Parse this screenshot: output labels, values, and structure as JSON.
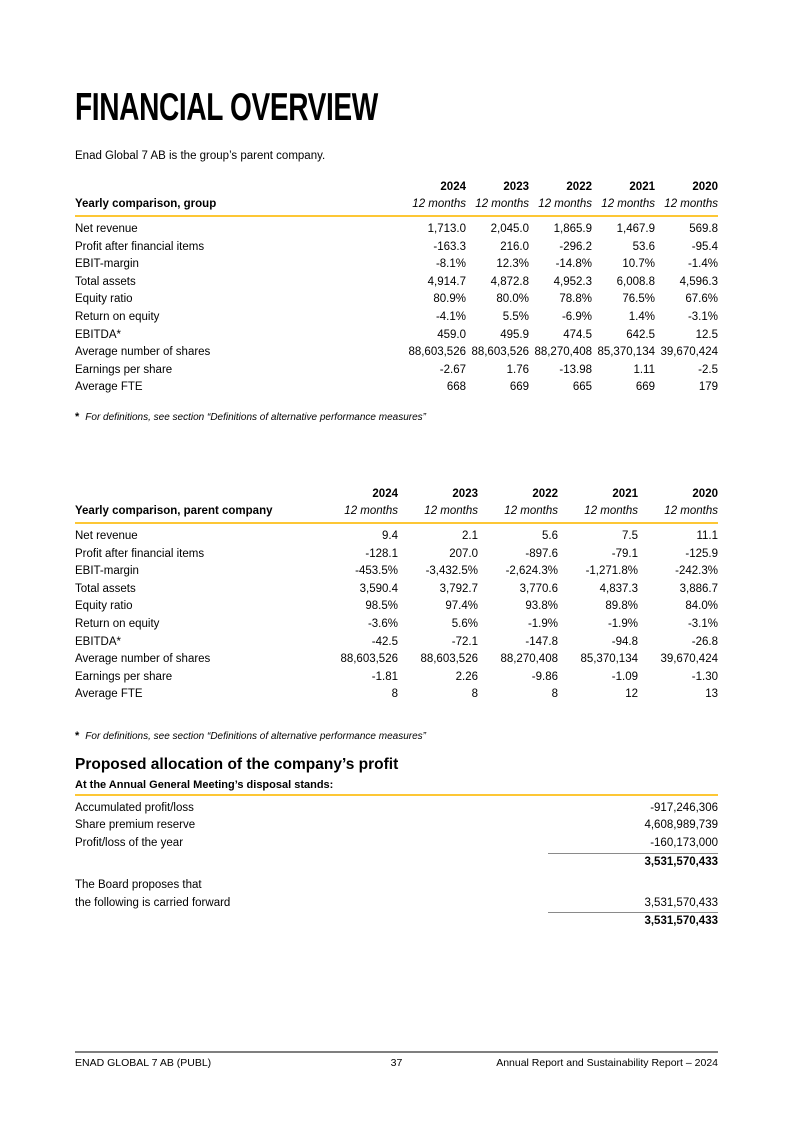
{
  "page": {
    "title": "FINANCIAL OVERVIEW",
    "subtitle": "Enad Global 7 AB is the group’s parent company."
  },
  "colors": {
    "accent_yellow": "#FDC735",
    "rule_gray": "#8a8a8a"
  },
  "years": [
    "2024",
    "2023",
    "2022",
    "2021",
    "2020"
  ],
  "period_label": "12 months",
  "footnote_text": "For definitions, see section “Definitions of alternative performance measures”",
  "tables": [
    {
      "name": "Yearly comparison, group",
      "rows": [
        {
          "label": "Net revenue",
          "values": [
            "1,713.0",
            "2,045.0",
            "1,865.9",
            "1,467.9",
            "569.8"
          ]
        },
        {
          "label": "Profit after financial items",
          "values": [
            "-163.3",
            "216.0",
            "-296.2",
            "53.6",
            "-95.4"
          ]
        },
        {
          "label": "EBIT-margin",
          "values": [
            "-8.1%",
            "12.3%",
            "-14.8%",
            "10.7%",
            "-1.4%"
          ]
        },
        {
          "label": "Total assets",
          "values": [
            "4,914.7",
            "4,872.8",
            "4,952.3",
            "6,008.8",
            "4,596.3"
          ]
        },
        {
          "label": "Equity ratio",
          "values": [
            "80.9%",
            "80.0%",
            "78.8%",
            "76.5%",
            "67.6%"
          ]
        },
        {
          "label": "Return on equity",
          "values": [
            "-4.1%",
            "5.5%",
            "-6.9%",
            "1.4%",
            "-3.1%"
          ]
        },
        {
          "label": "EBITDA*",
          "values": [
            "459.0",
            "495.9",
            "474.5",
            "642.5",
            "12.5"
          ]
        },
        {
          "label": "Average number of shares",
          "values": [
            "88,603,526",
            "88,603,526",
            "88,270,408",
            "85,370,134",
            "39,670,424"
          ]
        },
        {
          "label": "Earnings per share",
          "values": [
            "-2.67",
            "1.76",
            "-13.98",
            "1.11",
            "-2.5"
          ]
        },
        {
          "label": "Average FTE",
          "values": [
            "668",
            "669",
            "665",
            "669",
            "179"
          ]
        }
      ]
    },
    {
      "name": "Yearly comparison, parent company",
      "rows": [
        {
          "label": "Net revenue",
          "values": [
            "9.4",
            "2.1",
            "5.6",
            "7.5",
            "11.1"
          ]
        },
        {
          "label": "Profit after financial items",
          "values": [
            "-128.1",
            "207.0",
            "-897.6",
            "-79.1",
            "-125.9"
          ]
        },
        {
          "label": "EBIT-margin",
          "values": [
            "-453.5%",
            "-3,432.5%",
            "-2,624.3%",
            "-1,271.8%",
            "-242.3%"
          ]
        },
        {
          "label": "Total assets",
          "values": [
            "3,590.4",
            "3,792.7",
            "3,770.6",
            "4,837.3",
            "3,886.7"
          ]
        },
        {
          "label": "Equity ratio",
          "values": [
            "98.5%",
            "97.4%",
            "93.8%",
            "89.8%",
            "84.0%"
          ]
        },
        {
          "label": "Return on equity",
          "values": [
            "-3.6%",
            "5.6%",
            "-1.9%",
            "-1.9%",
            "-3.1%"
          ]
        },
        {
          "label": "EBITDA*",
          "values": [
            "-42.5",
            "-72.1",
            "-147.8",
            "-94.8",
            "-26.8"
          ]
        },
        {
          "label": "Average number of shares",
          "values": [
            "88,603,526",
            "88,603,526",
            "88,270,408",
            "85,370,134",
            "39,670,424"
          ]
        },
        {
          "label": "Earnings per share",
          "values": [
            "-1.81",
            "2.26",
            "-9.86",
            "-1.09",
            "-1.30"
          ]
        },
        {
          "label": "Average FTE",
          "values": [
            "8",
            "8",
            "8",
            "12",
            "13"
          ]
        }
      ]
    }
  ],
  "allocation": {
    "heading": "Proposed allocation of the company’s profit",
    "subheading": "At the Annual General Meeting’s disposal stands:",
    "lines": [
      {
        "label": "Accumulated profit/loss",
        "value": "-917,246,306"
      },
      {
        "label": "Share premium reserve",
        "value": "4,608,989,739"
      },
      {
        "label": "Profit/loss of the year",
        "value": "-160,173,000"
      },
      {
        "label": "",
        "value": "3,531,570,433",
        "bold": true,
        "rule": true
      },
      {
        "spacer": true
      },
      {
        "label": "The Board proposes that",
        "value": ""
      },
      {
        "label": "the following is carried forward",
        "value": "3,531,570,433"
      },
      {
        "label": "",
        "value": "3,531,570,433",
        "bold": true,
        "rule": true
      }
    ]
  },
  "footer": {
    "left": "ENAD GLOBAL 7 AB (PUBL)",
    "page": "37",
    "right": "Annual Report and Sustainability Report – 2024"
  }
}
